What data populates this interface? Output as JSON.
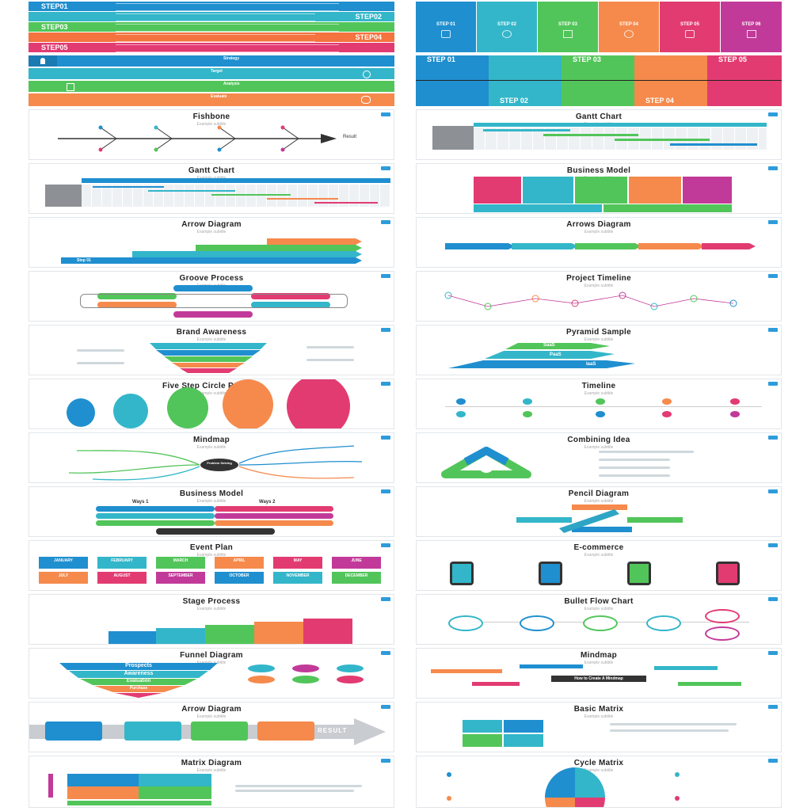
{
  "top_left": {
    "steps": [
      {
        "label": "STEP01",
        "color": "#1f8fcf"
      },
      {
        "label": "STEP02",
        "color": "#33b6c9"
      },
      {
        "label": "STEP03",
        "color": "#52c55a"
      },
      {
        "label": "STEP04",
        "color": "#f4733f"
      },
      {
        "label": "STEP05",
        "color": "#e23b72"
      }
    ]
  },
  "top_right": {
    "columns": [
      {
        "label": "STEP 01",
        "color": "#1f8fcf"
      },
      {
        "label": "STEP 02",
        "color": "#33b6c9"
      },
      {
        "label": "STEP 03",
        "color": "#52c55a"
      },
      {
        "label": "STEP 04",
        "color": "#f58a4c"
      },
      {
        "label": "STEP 05",
        "color": "#e23b72"
      },
      {
        "label": "STEP 06",
        "color": "#c23a99"
      }
    ]
  },
  "second_left": {
    "rows": [
      "Strategy",
      "Target",
      "Analysis",
      "Evaluate"
    ]
  },
  "second_right": {
    "top_labels": [
      "STEP 01",
      "STEP 03",
      "STEP 05"
    ],
    "bottom_labels": [
      "STEP 02",
      "STEP 04"
    ]
  },
  "cards_left": [
    {
      "title": "Fishbone",
      "sub": "Example subtitle",
      "extra": "Result"
    },
    {
      "title": "Gantt Chart",
      "sub": "Example subtitle"
    },
    {
      "title": "Arrow Diagram",
      "sub": "Example subtitle",
      "extra": "Step 01"
    },
    {
      "title": "Groove Process",
      "sub": "Example subtitle"
    },
    {
      "title": "Brand Awareness",
      "sub": "Example subtitle"
    },
    {
      "title": "Five Step Circle Process",
      "sub": "Example subtitle"
    },
    {
      "title": "Mindmap",
      "sub": "Example subtitle",
      "extra": "Problem Solving"
    },
    {
      "title": "Business Model",
      "sub": "Example subtitle",
      "extra": "Ways 1",
      "extra2": "Ways 2"
    },
    {
      "title": "Event Plan",
      "sub": "Example subtitle"
    },
    {
      "title": "Stage Process",
      "sub": "Example subtitle"
    },
    {
      "title": "Funnel Diagram",
      "sub": "Example subtitle"
    },
    {
      "title": "Arrow Diagram",
      "sub": "Example subtitle",
      "extra": "RESULT"
    },
    {
      "title": "Matrix Diagram",
      "sub": "Example subtitle"
    }
  ],
  "cards_right": [
    {
      "title": "Gantt Chart",
      "sub": "Example subtitle"
    },
    {
      "title": "Business Model",
      "sub": "Example subtitle"
    },
    {
      "title": "Arrows Diagram",
      "sub": "Example subtitle"
    },
    {
      "title": "Project Timeline",
      "sub": "Example subtitle"
    },
    {
      "title": "Pyramid Sample",
      "sub": "Example subtitle",
      "extra": "SaaS",
      "extra2": "PaaS",
      "extra3": "IaaS"
    },
    {
      "title": "Timeline",
      "sub": "Example subtitle"
    },
    {
      "title": "Combining Idea",
      "sub": "Example subtitle"
    },
    {
      "title": "Pencil Diagram",
      "sub": "Example subtitle"
    },
    {
      "title": "E-commerce",
      "sub": "Example subtitle"
    },
    {
      "title": "Bullet Flow Chart",
      "sub": "Example subtitle"
    },
    {
      "title": "Mindmap",
      "sub": "Example subtitle",
      "extra": "How to Create A Mindmap"
    },
    {
      "title": "Basic Matrix",
      "sub": "Example subtitle"
    },
    {
      "title": "Cycle Matrix",
      "sub": "Example subtitle"
    }
  ],
  "event_months": [
    "JANUARY",
    "FEBRUARY",
    "MARCH",
    "APRIL",
    "MAY",
    "JUNE",
    "JULY",
    "AUGUST",
    "SEPTEMBER",
    "OCTOBER",
    "NOVEMBER",
    "DECEMBER"
  ],
  "funnel_labels": [
    "Prospects",
    "Awareness",
    "Evaluation",
    "Purchase"
  ],
  "palette": {
    "blue": "#1f8fcf",
    "teal": "#33b6c9",
    "green": "#52c55a",
    "orange": "#f58a4c",
    "pink": "#e23b72",
    "magenta": "#c23a99"
  }
}
